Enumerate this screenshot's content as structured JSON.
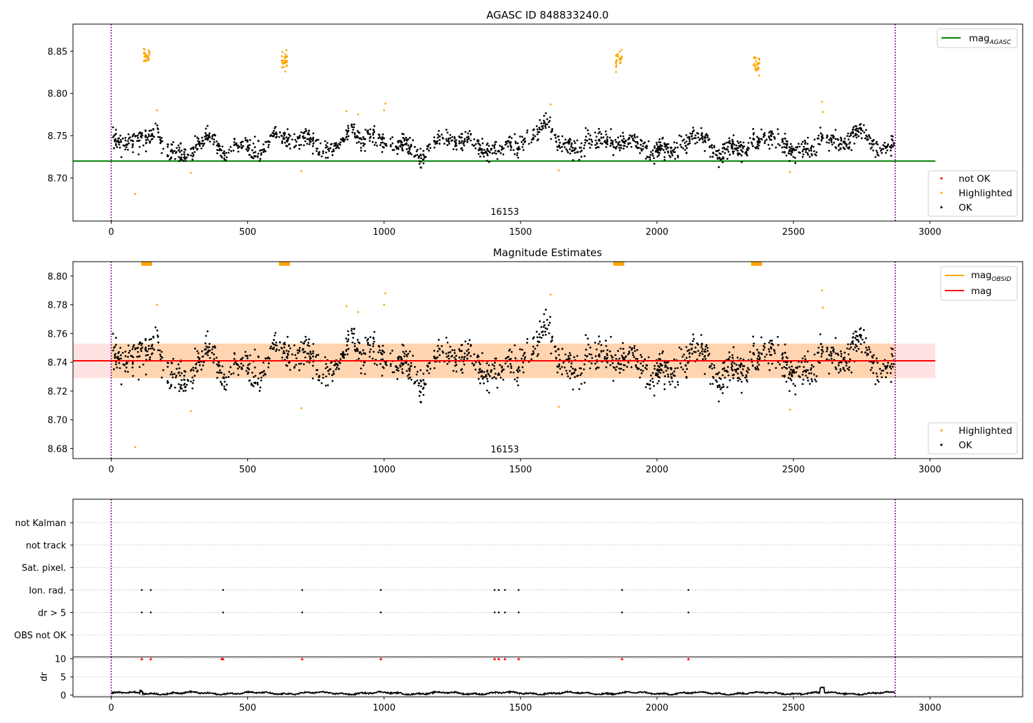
{
  "colors": {
    "ok": "#000000",
    "highlighted": "#ffa500",
    "not_ok": "#ff0000",
    "mag_agasc": "#008000",
    "mag_obsid": "#ffa500",
    "mag": "#ff0000",
    "band": "#ffbfbf",
    "obs_marker": "#800080",
    "grid": "#b0b0b0"
  },
  "chart_data": [
    {
      "type": "scatter",
      "title": "AGASC ID 848833240.0",
      "xlim": [
        -140,
        3340
      ],
      "ylim": [
        8.649,
        8.882
      ],
      "xticks": [
        0,
        500,
        1000,
        1500,
        2000,
        2500,
        3000
      ],
      "yticks": [
        8.7,
        8.75,
        8.8,
        8.85
      ],
      "ytick_labels": [
        "8.70",
        "8.75",
        "8.80",
        "8.85"
      ],
      "obsid_label": "16153",
      "obs_boundaries": [
        0,
        2873
      ],
      "lines": [
        {
          "name": "mag",
          "name_sub": "AGASC",
          "y": 8.72,
          "x_range": [
            -140,
            3020
          ],
          "color": "#008000"
        }
      ],
      "legend_lines": {
        "position": "top-right",
        "entries": [
          {
            "label": "mag",
            "sub": "AGASC",
            "color": "#008000"
          }
        ]
      },
      "legend_points": {
        "position": "bottom-right",
        "entries": [
          {
            "label": "not OK",
            "color": "#ff0000"
          },
          {
            "label": "Highlighted",
            "color": "#ffa500"
          },
          {
            "label": "OK",
            "color": "#000000"
          }
        ]
      },
      "series": [
        {
          "name": "OK",
          "baseline": 8.74,
          "spread": 0.01,
          "n": 1700
        },
        {
          "name": "Highlighted",
          "clusters": [
            {
              "x": 130,
              "y": 8.842
            },
            {
              "x": 635,
              "y": 8.838
            },
            {
              "x": 1860,
              "y": 8.84
            },
            {
              "x": 2365,
              "y": 8.835
            }
          ],
          "points": [
            {
              "x": 88,
              "y": 8.681
            },
            {
              "x": 292,
              "y": 8.706
            },
            {
              "x": 697,
              "y": 8.708
            },
            {
              "x": 1640,
              "y": 8.709
            },
            {
              "x": 2487,
              "y": 8.707
            },
            {
              "x": 1005,
              "y": 8.788
            },
            {
              "x": 1000,
              "y": 8.78
            },
            {
              "x": 1610,
              "y": 8.787
            },
            {
              "x": 2605,
              "y": 8.79
            },
            {
              "x": 2608,
              "y": 8.778
            },
            {
              "x": 168,
              "y": 8.78
            },
            {
              "x": 862,
              "y": 8.779
            },
            {
              "x": 905,
              "y": 8.775
            }
          ]
        },
        {
          "name": "not OK",
          "points": []
        }
      ]
    },
    {
      "type": "scatter",
      "title": "Magnitude Estimates",
      "xlim": [
        -140,
        3340
      ],
      "ylim": [
        8.673,
        8.81
      ],
      "xticks": [
        0,
        500,
        1000,
        1500,
        2000,
        2500,
        3000
      ],
      "yticks": [
        8.68,
        8.7,
        8.72,
        8.74,
        8.76,
        8.78,
        8.8
      ],
      "ytick_labels": [
        "8.68",
        "8.70",
        "8.72",
        "8.74",
        "8.76",
        "8.78",
        "8.80"
      ],
      "obsid_label": "16153",
      "obs_boundaries": [
        0,
        2873
      ],
      "lines": [
        {
          "name": "mag",
          "name_sub": "OBSID",
          "y": 8.741,
          "x_range": [
            0,
            2873
          ],
          "color": "#ffa500"
        },
        {
          "name": "mag",
          "y": 8.741,
          "x_range": [
            -140,
            3020
          ],
          "color": "#ff0000"
        }
      ],
      "band": {
        "y_low": 8.729,
        "y_high": 8.753,
        "x_range": [
          -140,
          3020
        ]
      },
      "legend_lines": {
        "position": "top-right",
        "entries": [
          {
            "label": "mag",
            "sub": "OBSID",
            "color": "#ffa500"
          },
          {
            "label": "mag",
            "sub": "",
            "color": "#ff0000"
          }
        ]
      },
      "legend_points": {
        "position": "bottom-right",
        "entries": [
          {
            "label": "Highlighted",
            "color": "#ffa500"
          },
          {
            "label": "OK",
            "color": "#000000"
          }
        ]
      }
    },
    {
      "type": "scatter",
      "title": "",
      "xlim": [
        -140,
        3340
      ],
      "xticks": [
        0,
        500,
        1000,
        1500,
        2000,
        2500,
        3000
      ],
      "obs_boundaries": [
        0,
        2873
      ],
      "flag_categories": [
        "not Kalman",
        "not track",
        "Sat. pixel.",
        "Ion. rad.",
        "dr > 5",
        "OBS not OK"
      ],
      "flag_events": {
        "Ion. rad.": [
          112,
          145,
          410,
          700,
          988,
          1405,
          1420,
          1443,
          1493,
          1872,
          2115
        ],
        "dr > 5": [
          112,
          145,
          410,
          700,
          988,
          1405,
          1420,
          1443,
          1493,
          1872,
          2115
        ]
      },
      "dr": {
        "ylabel": "dr",
        "ylim": [
          -0.5,
          10.5
        ],
        "yticks": [
          0,
          5,
          10
        ],
        "ytick_labels": [
          "0",
          "5",
          "10"
        ],
        "clipped_at": 10,
        "spikes_x": [
          112,
          145,
          405,
          410,
          700,
          988,
          1405,
          1420,
          1443,
          1493,
          1872,
          2115
        ],
        "baseline": 0.5
      }
    }
  ]
}
